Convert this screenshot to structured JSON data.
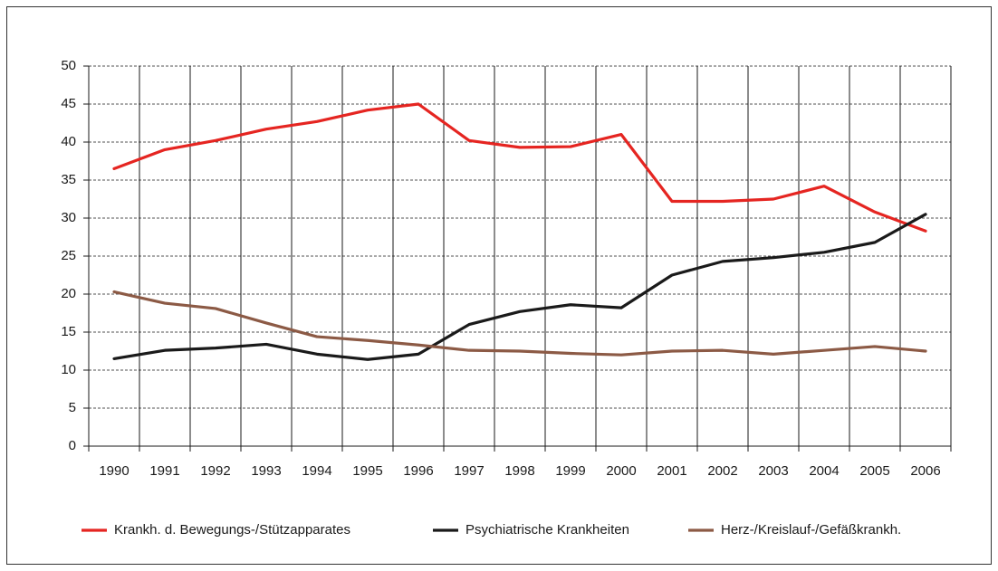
{
  "chart_data": {
    "type": "line",
    "categories": [
      "1990",
      "1991",
      "1992",
      "1993",
      "1994",
      "1995",
      "1996",
      "1997",
      "1998",
      "1999",
      "2000",
      "2001",
      "2002",
      "2003",
      "2004",
      "2005",
      "2006"
    ],
    "series": [
      {
        "name": "Krankh. d. Bewegungs-/Stützapparates",
        "color": "#e52521",
        "values": [
          36.5,
          39,
          40.2,
          41.7,
          42.7,
          44.2,
          45,
          40.2,
          39.3,
          39.4,
          41,
          32.2,
          32.2,
          32.5,
          34.2,
          30.8,
          28.3
        ]
      },
      {
        "name": "Psychiatrische Krankheiten",
        "color": "#1a1a1a",
        "values": [
          11.5,
          12.6,
          12.9,
          13.4,
          12.1,
          11.4,
          12.1,
          16,
          17.7,
          18.6,
          18.2,
          22.5,
          24.3,
          24.8,
          25.5,
          26.8,
          30.5
        ]
      },
      {
        "name": "Herz-/Kreislauf-/Gefäßkrankh.",
        "color": "#8c5a45",
        "values": [
          20.3,
          18.8,
          18.1,
          16.2,
          14.4,
          13.9,
          13.3,
          12.6,
          12.5,
          12.2,
          12,
          12.5,
          12.6,
          12.1,
          12.6,
          13.1,
          12.5
        ]
      }
    ],
    "ylim": [
      0,
      50
    ],
    "yticks": [
      0,
      5,
      10,
      15,
      20,
      25,
      30,
      35,
      40,
      45,
      50
    ],
    "grid": true,
    "legend": "bottom"
  }
}
